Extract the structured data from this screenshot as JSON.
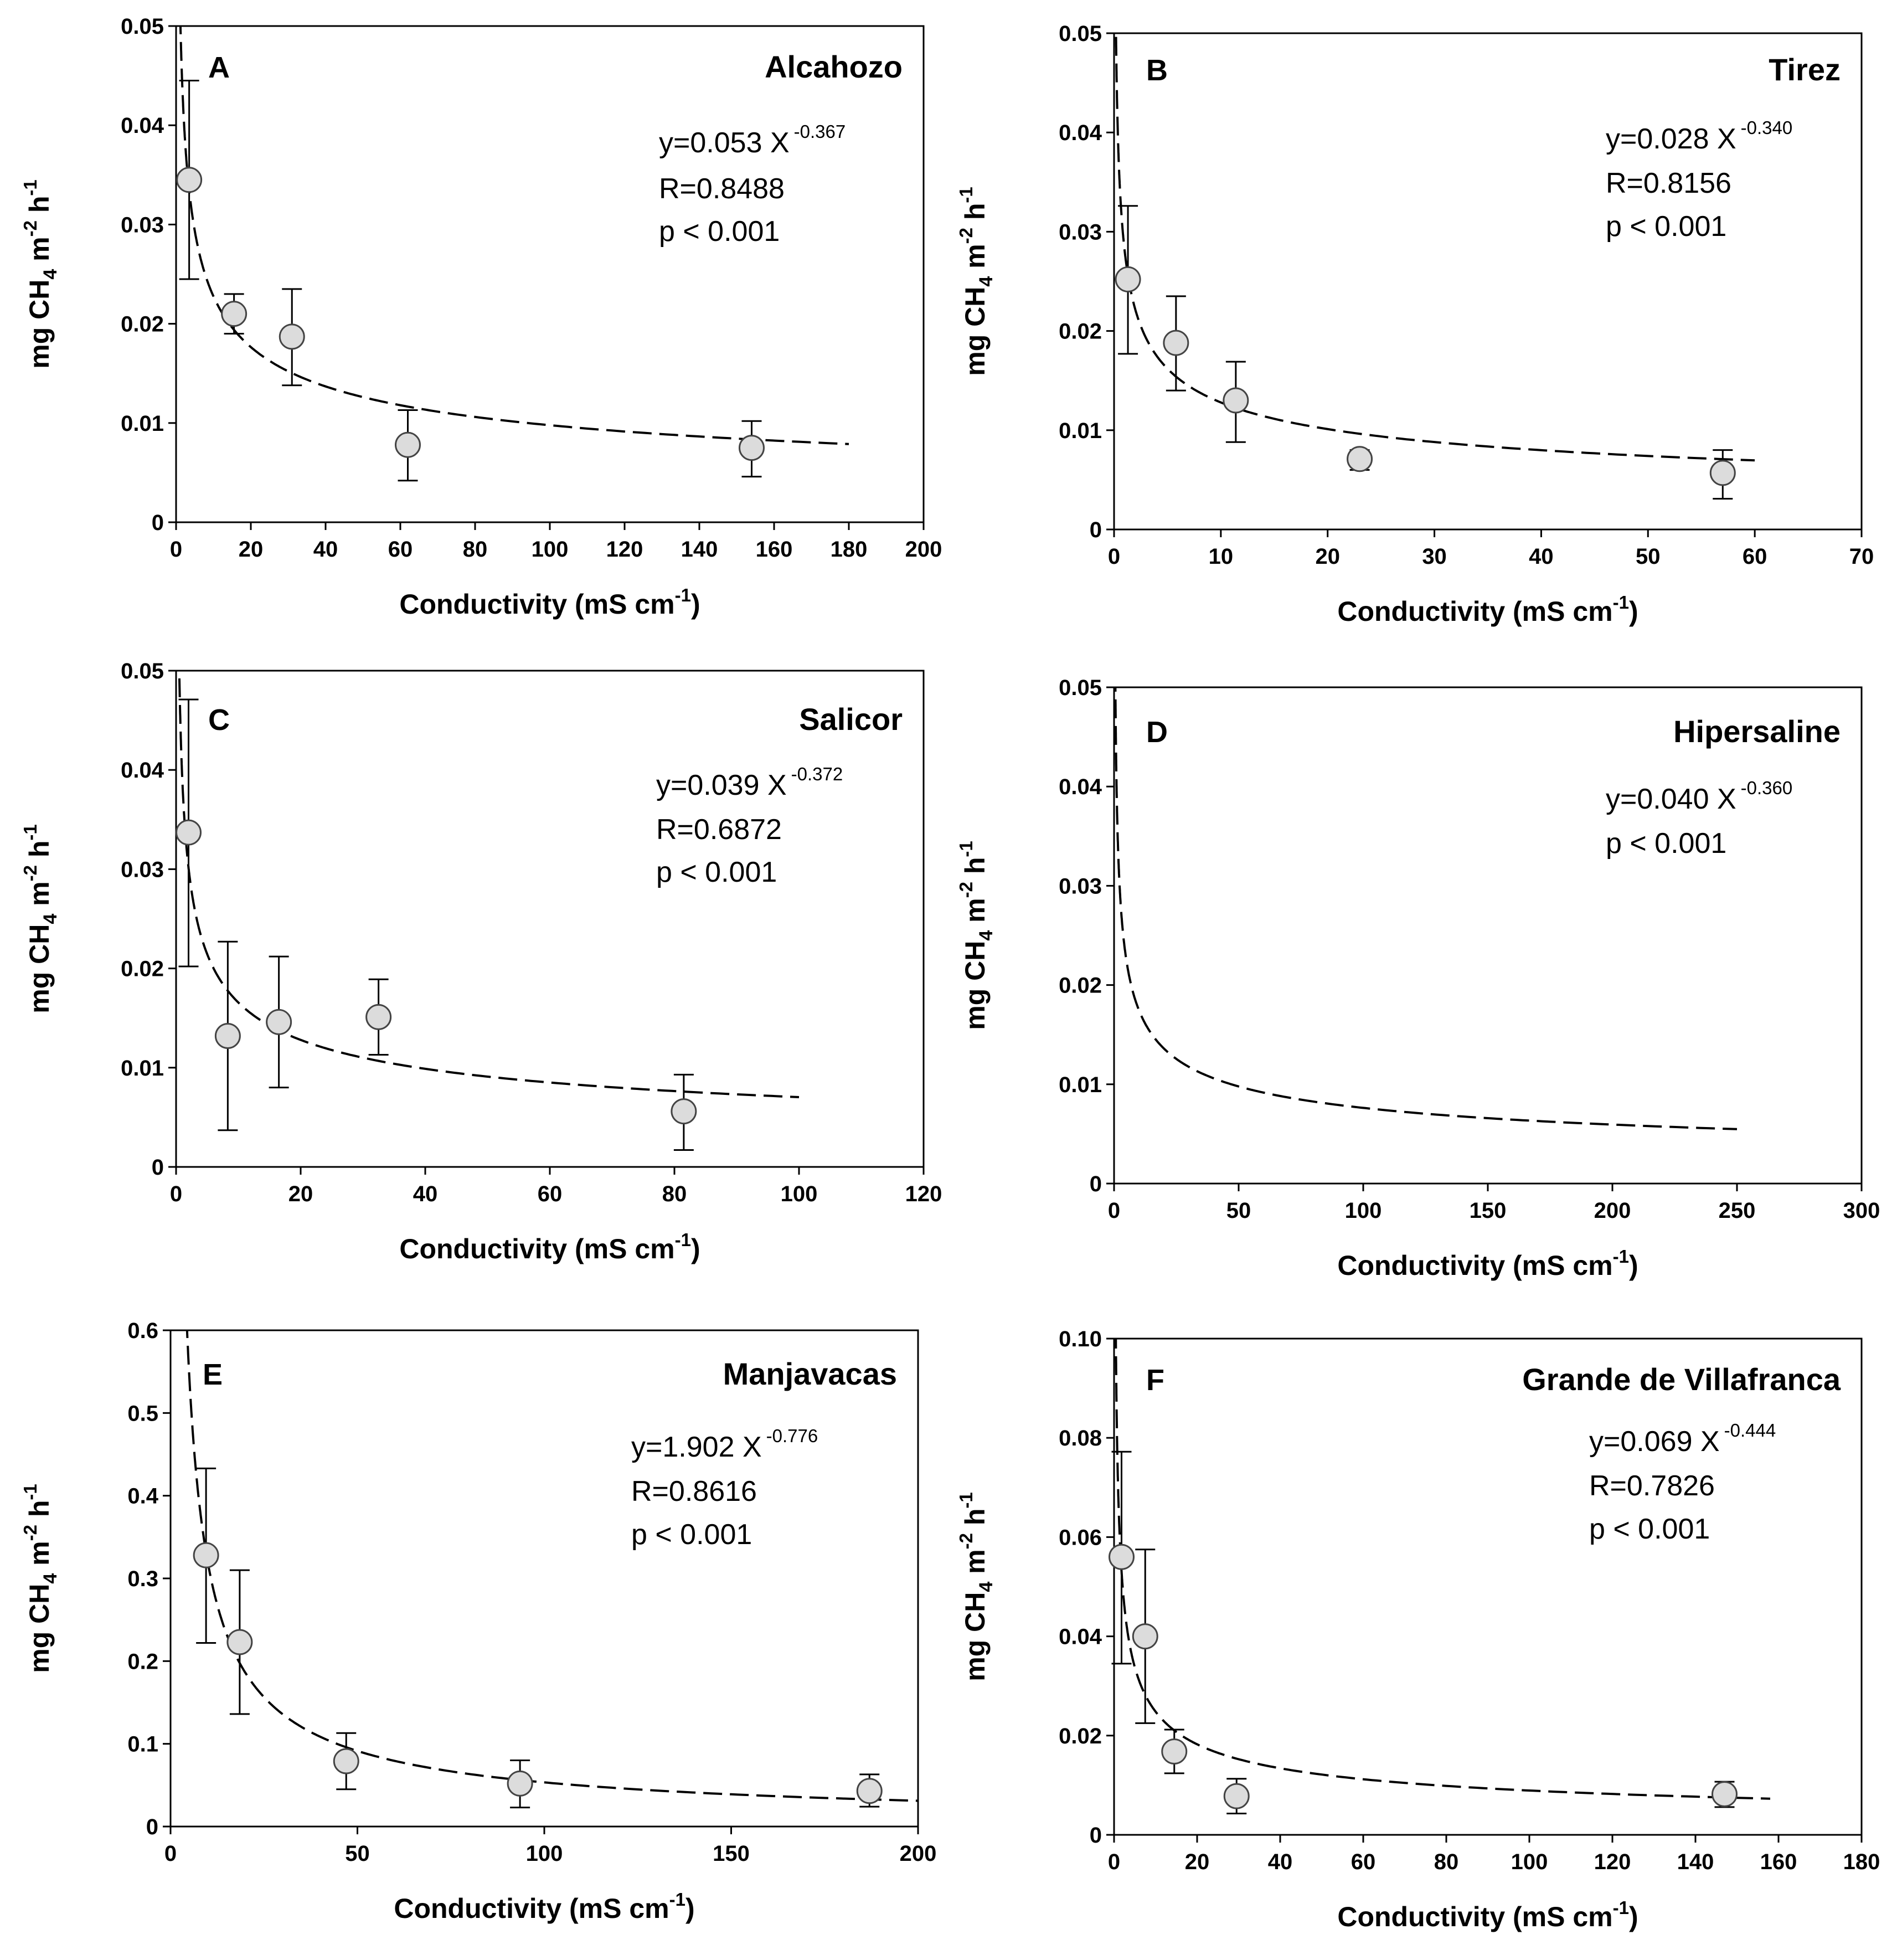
{
  "figure": {
    "x_axis_label": "Conductivity (mS cm",
    "x_axis_label_exp": "-1",
    "x_axis_label_end": ")",
    "y_axis_label_parts": [
      "mg CH",
      "4",
      " m",
      "-2",
      " h",
      "-1"
    ]
  },
  "chart_data": [
    {
      "type": "scatter",
      "panel": "A",
      "title": "Alcahozo",
      "equation": "y=0.053 X",
      "exponent": "-0.367",
      "r": "R=0.8488",
      "p": "p < 0.001",
      "coef": 0.053,
      "power": -0.367,
      "fit_range": [
        0.1,
        180
      ],
      "xlim": [
        0,
        200
      ],
      "ylim": [
        0,
        0.05
      ],
      "xticks": [
        0,
        20,
        40,
        60,
        80,
        100,
        120,
        140,
        160,
        180,
        200
      ],
      "yticks": [
        0,
        0.01,
        0.02,
        0.03,
        0.04,
        0.05
      ],
      "ytick_labels": [
        "0",
        "0.01",
        "0.02",
        "0.03",
        "0.04",
        "0.05"
      ],
      "error_cap_width": 18,
      "points": [
        {
          "x": 3.5,
          "y": 0.0345,
          "lo": 0.0245,
          "hi": 0.0445
        },
        {
          "x": 15.5,
          "y": 0.021,
          "lo": 0.019,
          "hi": 0.023
        },
        {
          "x": 31,
          "y": 0.0187,
          "lo": 0.0138,
          "hi": 0.0235
        },
        {
          "x": 62,
          "y": 0.0078,
          "lo": 0.0042,
          "hi": 0.0113
        },
        {
          "x": 154,
          "y": 0.0075,
          "lo": 0.0046,
          "hi": 0.0102
        }
      ]
    },
    {
      "type": "scatter",
      "panel": "B",
      "title": "Tirez",
      "equation": "y=0.028 X",
      "exponent": "-0.340",
      "r": "R=0.8156",
      "p": "p < 0.001",
      "coef": 0.028,
      "power": -0.34,
      "fit_range": [
        0.02,
        60
      ],
      "xlim": [
        0,
        70
      ],
      "ylim": [
        0,
        0.05
      ],
      "xticks": [
        0,
        10,
        20,
        30,
        40,
        50,
        60,
        70
      ],
      "yticks": [
        0,
        0.01,
        0.02,
        0.03,
        0.04,
        0.05
      ],
      "ytick_labels": [
        "0",
        "0.01",
        "0.02",
        "0.03",
        "0.04",
        "0.05"
      ],
      "error_cap_width": 18,
      "points": [
        {
          "x": 1.3,
          "y": 0.0252,
          "lo": 0.0177,
          "hi": 0.0326
        },
        {
          "x": 5.8,
          "y": 0.0188,
          "lo": 0.014,
          "hi": 0.0235
        },
        {
          "x": 11.4,
          "y": 0.013,
          "lo": 0.0088,
          "hi": 0.0169
        },
        {
          "x": 23,
          "y": 0.0071,
          "lo": 0.006,
          "hi": 0.008
        },
        {
          "x": 57,
          "y": 0.0057,
          "lo": 0.0031,
          "hi": 0.008
        }
      ]
    },
    {
      "type": "scatter",
      "panel": "C",
      "title": "Salicor",
      "equation": "y=0.039 X",
      "exponent": "-0.372",
      "r": "R=0.6872",
      "p": "p < 0.001",
      "coef": 0.039,
      "power": -0.372,
      "fit_range": [
        0.05,
        100
      ],
      "xlim": [
        0,
        120
      ],
      "ylim": [
        0,
        0.05
      ],
      "xticks": [
        0,
        20,
        40,
        60,
        80,
        100,
        120
      ],
      "yticks": [
        0,
        0.01,
        0.02,
        0.03,
        0.04,
        0.05
      ],
      "ytick_labels": [
        "0",
        "0.01",
        "0.02",
        "0.03",
        "0.04",
        "0.05"
      ],
      "error_cap_width": 18,
      "points": [
        {
          "x": 2,
          "y": 0.0337,
          "lo": 0.0202,
          "hi": 0.0471
        },
        {
          "x": 8.3,
          "y": 0.0132,
          "lo": 0.0037,
          "hi": 0.0227
        },
        {
          "x": 16.5,
          "y": 0.0146,
          "lo": 0.008,
          "hi": 0.0212
        },
        {
          "x": 32.5,
          "y": 0.0151,
          "lo": 0.0113,
          "hi": 0.0189
        },
        {
          "x": 81.5,
          "y": 0.0056,
          "lo": 0.0017,
          "hi": 0.0093
        }
      ]
    },
    {
      "type": "line",
      "panel": "D",
      "title": "Hipersaline",
      "equation": "y=0.040 X",
      "exponent": "-0.360",
      "r": "",
      "p": "p < 0.001",
      "coef": 0.04,
      "power": -0.36,
      "fit_range": [
        0.1,
        250
      ],
      "xlim": [
        0,
        300
      ],
      "ylim": [
        0,
        0.05
      ],
      "xticks": [
        0,
        50,
        100,
        150,
        200,
        250,
        300
      ],
      "yticks": [
        0,
        0.01,
        0.02,
        0.03,
        0.04,
        0.05
      ],
      "ytick_labels": [
        "0",
        "0.01",
        "0.02",
        "0.03",
        "0.04",
        "0.05"
      ],
      "error_cap_width": 18,
      "points": []
    },
    {
      "type": "scatter",
      "panel": "E",
      "title": "Manjavacas",
      "equation": "y=1.902 X",
      "exponent": "-0.776",
      "r": "R=0.8616",
      "p": "p < 0.001",
      "coef": 1.902,
      "power": -0.776,
      "fit_range": [
        0.5,
        200
      ],
      "xlim": [
        0,
        200
      ],
      "ylim": [
        0,
        0.6
      ],
      "xticks": [
        0,
        50,
        100,
        150,
        200
      ],
      "yticks": [
        0,
        0.1,
        0.2,
        0.3,
        0.4,
        0.5,
        0.6
      ],
      "ytick_labels": [
        "0",
        "0.1",
        "0.2",
        "0.3",
        "0.4",
        "0.5",
        "0.6"
      ],
      "error_cap_width": 18,
      "points": [
        {
          "x": 9.5,
          "y": 0.328,
          "lo": 0.222,
          "hi": 0.433
        },
        {
          "x": 18.5,
          "y": 0.223,
          "lo": 0.136,
          "hi": 0.31
        },
        {
          "x": 47,
          "y": 0.079,
          "lo": 0.045,
          "hi": 0.113
        },
        {
          "x": 93.5,
          "y": 0.052,
          "lo": 0.023,
          "hi": 0.08
        },
        {
          "x": 187,
          "y": 0.043,
          "lo": 0.024,
          "hi": 0.063
        }
      ]
    },
    {
      "type": "scatter",
      "panel": "F",
      "title": "Grande de Villafranca",
      "equation": "y=0.069 X",
      "exponent": "-0.444",
      "r": "R=0.7826",
      "p": "p < 0.001",
      "coef": 0.069,
      "power": -0.444,
      "fit_range": [
        0.02,
        158
      ],
      "xlim": [
        0,
        180
      ],
      "ylim": [
        0,
        0.1
      ],
      "xticks": [
        0,
        20,
        40,
        60,
        80,
        100,
        120,
        140,
        160,
        180
      ],
      "yticks": [
        0,
        0.02,
        0.04,
        0.06,
        0.08,
        0.1
      ],
      "ytick_labels": [
        "0",
        "0.02",
        "0.04",
        "0.06",
        "0.08",
        "0.10"
      ],
      "error_cap_width": 18,
      "points": [
        {
          "x": 1.8,
          "y": 0.056,
          "lo": 0.0345,
          "hi": 0.0772
        },
        {
          "x": 7.5,
          "y": 0.04,
          "lo": 0.0225,
          "hi": 0.0575
        },
        {
          "x": 14.5,
          "y": 0.0168,
          "lo": 0.0124,
          "hi": 0.0212
        },
        {
          "x": 29.5,
          "y": 0.0078,
          "lo": 0.0043,
          "hi": 0.0113
        },
        {
          "x": 147,
          "y": 0.0082,
          "lo": 0.0056,
          "hi": 0.0107
        }
      ]
    }
  ]
}
